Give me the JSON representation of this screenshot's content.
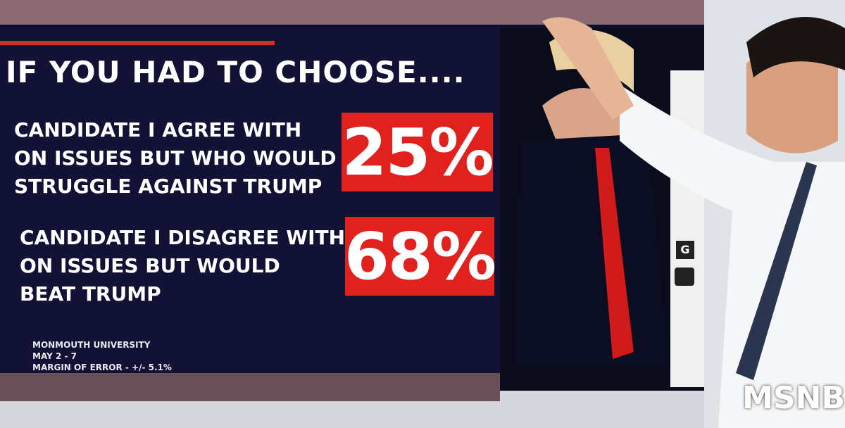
{
  "title": "IF YOU HAD TO CHOOSE....",
  "items": [
    {
      "label_lines": [
        "CANDIDATE I AGREE WITH",
        "ON ISSUES BUT WHO WOULD",
        "STRUGGLE AGAINST TRUMP"
      ],
      "value": "25%"
    },
    {
      "label_lines": [
        "CANDIDATE I DISAGREE WITH",
        "ON ISSUES BUT WOULD",
        "BEAT TRUMP"
      ],
      "value": "68%"
    }
  ],
  "source_lines": [
    "MONMOUTH UNIVERSITY",
    "MAY 2 - 7",
    "MARGIN OF ERROR - +/- 5.1%"
  ],
  "toolbar_letter": "G",
  "logo": "MSNB"
}
